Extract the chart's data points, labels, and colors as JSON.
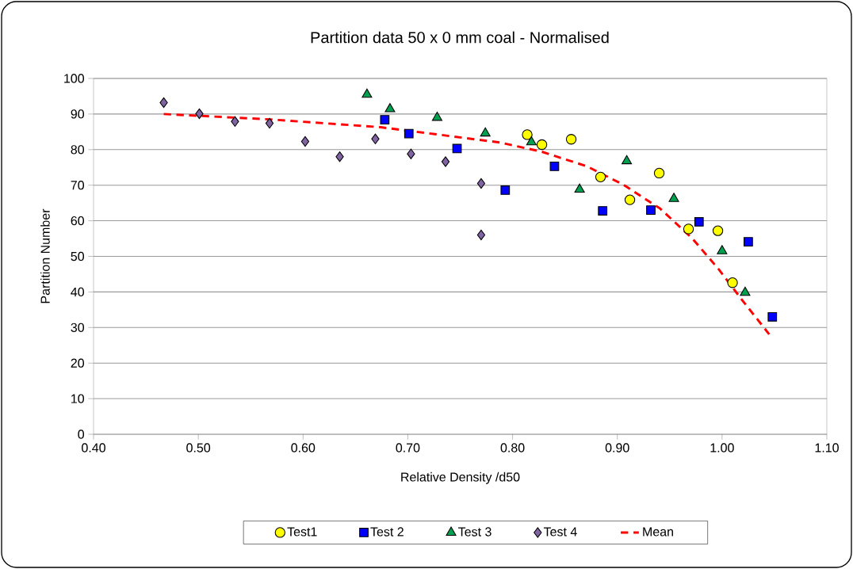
{
  "chart_data": {
    "type": "scatter",
    "title": "Partition data 50 x 0 mm coal - Normalised",
    "xlabel": "Relative Density /d50",
    "ylabel": "Partition Number",
    "xlim": [
      0.4,
      1.1
    ],
    "ylim": [
      0,
      100
    ],
    "xticks": [
      {
        "value": 0.4,
        "label": "0.40"
      },
      {
        "value": 0.5,
        "label": "0.50"
      },
      {
        "value": 0.6,
        "label": "0.60"
      },
      {
        "value": 0.7,
        "label": "0.70"
      },
      {
        "value": 0.8,
        "label": "0.80"
      },
      {
        "value": 0.9,
        "label": "0.90"
      },
      {
        "value": 1.0,
        "label": "1.00"
      },
      {
        "value": 1.1,
        "label": "1.10"
      }
    ],
    "yticks": [
      0,
      10,
      20,
      30,
      40,
      50,
      60,
      70,
      80,
      90,
      100
    ],
    "grid": "y",
    "legend": "bottom",
    "series": [
      {
        "name": "Test1",
        "marker": "circle",
        "color": "#ffff00",
        "x": [
          0.814,
          0.828,
          0.856,
          0.884,
          0.912,
          0.94,
          0.968,
          0.996,
          1.01
        ],
        "values": [
          84.2,
          81.4,
          82.9,
          72.3,
          65.9,
          73.4,
          57.7,
          57.2,
          42.6
        ]
      },
      {
        "name": "Test 2",
        "marker": "square",
        "color": "#0000ff",
        "x": [
          0.678,
          0.701,
          0.747,
          0.793,
          0.84,
          0.886,
          0.932,
          0.978,
          1.025,
          1.048
        ],
        "values": [
          88.4,
          84.5,
          80.3,
          68.6,
          75.3,
          62.8,
          63.0,
          59.7,
          54.1,
          33.0
        ]
      },
      {
        "name": "Test 3",
        "marker": "triangle",
        "color": "#00a050",
        "x": [
          0.661,
          0.683,
          0.728,
          0.774,
          0.818,
          0.864,
          0.909,
          0.954,
          1.0,
          1.022
        ],
        "values": [
          95.5,
          91.4,
          89.0,
          84.6,
          82.1,
          68.8,
          76.8,
          66.2,
          51.5,
          39.8
        ]
      },
      {
        "name": "Test 4",
        "marker": "diamond",
        "color": "#8064a2",
        "x": [
          0.467,
          0.501,
          0.535,
          0.568,
          0.602,
          0.635,
          0.669,
          0.703,
          0.736,
          0.77,
          0.77
        ],
        "values": [
          93.2,
          90.1,
          87.9,
          87.4,
          82.3,
          78.0,
          83.0,
          78.8,
          76.6,
          70.5,
          56.0
        ]
      },
      {
        "name": "Mean",
        "type": "line",
        "marker": "none",
        "line_style": "dashed",
        "color": "#ff0000",
        "x": [
          0.467,
          0.568,
          0.674,
          0.788,
          0.828,
          0.871,
          0.906,
          0.941,
          0.972,
          0.997,
          1.02,
          1.045
        ],
        "values": [
          90.0,
          88.5,
          86.3,
          82.0,
          79.4,
          75.3,
          70.1,
          63.4,
          54.9,
          46.3,
          37.4,
          28.1
        ]
      }
    ]
  }
}
